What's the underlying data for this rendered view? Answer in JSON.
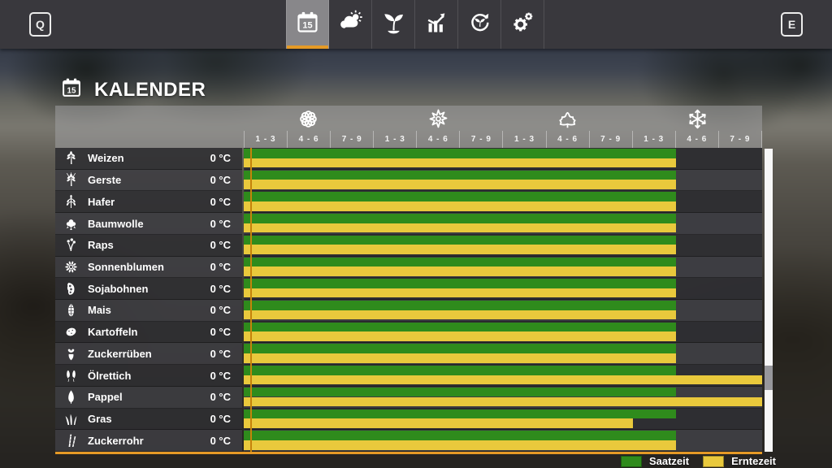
{
  "topbar": {
    "left_key": "Q",
    "right_key": "E",
    "tabs": [
      {
        "name": "calendar",
        "icon": "calendar-icon",
        "active": true
      },
      {
        "name": "weather",
        "icon": "weather-icon",
        "active": false
      },
      {
        "name": "crops",
        "icon": "sprout-icon",
        "active": false
      },
      {
        "name": "statistics",
        "icon": "statistics-icon",
        "active": false
      },
      {
        "name": "economy",
        "icon": "economy-icon",
        "active": false
      },
      {
        "name": "settings",
        "icon": "settings-icon",
        "active": false
      }
    ]
  },
  "page": {
    "title": "KALENDER",
    "title_icon": "calendar-icon"
  },
  "calendar": {
    "columns_total": 12,
    "seasons": [
      {
        "name": "spring",
        "icon": "flower-icon"
      },
      {
        "name": "summer",
        "icon": "sun-icon"
      },
      {
        "name": "autumn",
        "icon": "maple-leaf-icon"
      },
      {
        "name": "winter",
        "icon": "snowflake-icon"
      }
    ],
    "period_labels": [
      "1 - 3",
      "4 - 6",
      "7 - 9",
      "1 - 3",
      "4 - 6",
      "7 - 9",
      "1 - 3",
      "4 - 6",
      "7 - 9",
      "1 - 3",
      "4 - 6",
      "7 - 9"
    ],
    "crops": [
      {
        "name": "Weizen",
        "temperature": "0 °C",
        "icon": "wheat-icon",
        "sow_start_col": 0,
        "sow_end_col": 10,
        "harvest_start_col": 0,
        "harvest_end_col": 10
      },
      {
        "name": "Gerste",
        "temperature": "0 °C",
        "icon": "barley-icon",
        "sow_start_col": 0,
        "sow_end_col": 10,
        "harvest_start_col": 0,
        "harvest_end_col": 10
      },
      {
        "name": "Hafer",
        "temperature": "0 °C",
        "icon": "oat-icon",
        "sow_start_col": 0,
        "sow_end_col": 10,
        "harvest_start_col": 0,
        "harvest_end_col": 10
      },
      {
        "name": "Baumwolle",
        "temperature": "0 °C",
        "icon": "cotton-icon",
        "sow_start_col": 0,
        "sow_end_col": 10,
        "harvest_start_col": 0,
        "harvest_end_col": 10
      },
      {
        "name": "Raps",
        "temperature": "0 °C",
        "icon": "canola-icon",
        "sow_start_col": 0,
        "sow_end_col": 10,
        "harvest_start_col": 0,
        "harvest_end_col": 10
      },
      {
        "name": "Sonnenblumen",
        "temperature": "0 °C",
        "icon": "sunflower-icon",
        "sow_start_col": 0,
        "sow_end_col": 10,
        "harvest_start_col": 0,
        "harvest_end_col": 10
      },
      {
        "name": "Sojabohnen",
        "temperature": "0 °C",
        "icon": "soybean-icon",
        "sow_start_col": 0,
        "sow_end_col": 10,
        "harvest_start_col": 0,
        "harvest_end_col": 10
      },
      {
        "name": "Mais",
        "temperature": "0 °C",
        "icon": "corn-icon",
        "sow_start_col": 0,
        "sow_end_col": 10,
        "harvest_start_col": 0,
        "harvest_end_col": 10
      },
      {
        "name": "Kartoffeln",
        "temperature": "0 °C",
        "icon": "potato-icon",
        "sow_start_col": 0,
        "sow_end_col": 10,
        "harvest_start_col": 0,
        "harvest_end_col": 10
      },
      {
        "name": "Zuckerrüben",
        "temperature": "0 °C",
        "icon": "sugar-beet-icon",
        "sow_start_col": 0,
        "sow_end_col": 10,
        "harvest_start_col": 0,
        "harvest_end_col": 10
      },
      {
        "name": "Ölrettich",
        "temperature": "0 °C",
        "icon": "radish-icon",
        "sow_start_col": 0,
        "sow_end_col": 10,
        "harvest_start_col": 0,
        "harvest_end_col": 12
      },
      {
        "name": "Pappel",
        "temperature": "0 °C",
        "icon": "poplar-icon",
        "sow_start_col": 0,
        "sow_end_col": 10,
        "harvest_start_col": 0,
        "harvest_end_col": 12
      },
      {
        "name": "Gras",
        "temperature": "0 °C",
        "icon": "grass-icon",
        "sow_start_col": 0,
        "sow_end_col": 10,
        "harvest_start_col": 0,
        "harvest_end_col": 9
      },
      {
        "name": "Zuckerrohr",
        "temperature": "0 °C",
        "icon": "sugarcane-icon",
        "sow_start_col": 0,
        "sow_end_col": 10,
        "harvest_start_col": 0,
        "harvest_end_col": 10
      }
    ],
    "legend": [
      {
        "label": "Saatzeit",
        "color": "#2f8b1c"
      },
      {
        "label": "Erntezeit",
        "color": "#e9c93c"
      }
    ]
  },
  "colors": {
    "sow_green": "#2f8b1c",
    "harvest_yellow": "#e9c93c",
    "accent_orange": "#e59a26",
    "day_indicator": "#c5830b"
  }
}
